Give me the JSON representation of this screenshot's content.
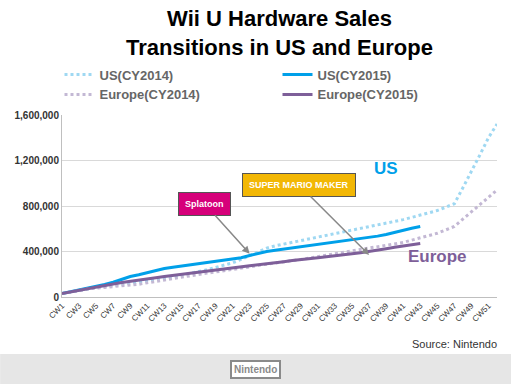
{
  "chart_data": {
    "type": "line",
    "title": "Wii U Hardware Sales\nTransitions in US and Europe",
    "categories": [
      "CW1",
      null,
      "CW3",
      null,
      "CW5",
      null,
      "CW7",
      null,
      "CW9",
      null,
      "CW11",
      null,
      "CW13",
      null,
      "CW15",
      null,
      "CW17",
      null,
      "CW19",
      null,
      "CW21",
      null,
      "CW23",
      null,
      "CW25",
      null,
      "CW27",
      null,
      "CW29",
      null,
      "CW31",
      null,
      "CW33",
      null,
      "CW35",
      null,
      "CW37",
      null,
      "CW39",
      null,
      "CW41",
      null,
      "CW43",
      null,
      "CW45",
      null,
      "CW47",
      null,
      "CW49",
      null,
      "CW51",
      null
    ],
    "series": [
      {
        "name": "US(CY2014)",
        "color": "#9fd8f2",
        "line_style": "dot",
        "values": [
          30000,
          40000,
          55000,
          70000,
          80000,
          90000,
          100000,
          110000,
          120000,
          130000,
          140000,
          150000,
          160000,
          175000,
          190000,
          205000,
          220000,
          240000,
          260000,
          280000,
          300000,
          330000,
          365000,
          400000,
          430000,
          450000,
          465000,
          485000,
          500000,
          515000,
          530000,
          545000,
          560000,
          575000,
          590000,
          605000,
          620000,
          635000,
          650000,
          665000,
          680000,
          700000,
          720000,
          740000,
          760000,
          790000,
          820000,
          960000,
          1100000,
          1250000,
          1400000,
          1520000
        ]
      },
      {
        "name": "US(CY2015)",
        "color": "#00a0e9",
        "line_style": "solid",
        "values": [
          30000,
          45000,
          60000,
          75000,
          90000,
          110000,
          130000,
          155000,
          180000,
          195000,
          215000,
          235000,
          250000,
          262000,
          272000,
          282000,
          290000,
          300000,
          310000,
          320000,
          330000,
          345000,
          365000,
          385000,
          400000,
          410000,
          420000,
          430000,
          440000,
          450000,
          460000,
          470000,
          480000,
          490000,
          500000,
          510000,
          520000,
          535000,
          550000,
          570000,
          590000,
          605000,
          620000,
          null,
          null,
          null,
          null,
          null,
          null,
          null,
          null,
          null
        ]
      },
      {
        "name": "Europe(CY2014)",
        "color": "#c3b8d4",
        "line_style": "dot",
        "values": [
          30000,
          45000,
          60000,
          70000,
          78000,
          84000,
          90000,
          95000,
          100000,
          112000,
          125000,
          138000,
          150000,
          162000,
          175000,
          188000,
          200000,
          210000,
          220000,
          230000,
          240000,
          252000,
          265000,
          278000,
          290000,
          300000,
          310000,
          320000,
          330000,
          342000,
          355000,
          368000,
          380000,
          392000,
          405000,
          418000,
          430000,
          442000,
          455000,
          468000,
          480000,
          500000,
          520000,
          540000,
          560000,
          590000,
          620000,
          685000,
          750000,
          815000,
          880000,
          940000
        ]
      },
      {
        "name": "Europe(CY2015)",
        "color": "#7e5f99",
        "line_style": "solid",
        "values": [
          30000,
          45000,
          60000,
          75000,
          90000,
          102000,
          115000,
          128000,
          140000,
          150000,
          160000,
          170000,
          180000,
          190000,
          200000,
          210000,
          220000,
          230000,
          240000,
          250000,
          260000,
          268000,
          275000,
          283000,
          290000,
          300000,
          310000,
          320000,
          330000,
          338000,
          345000,
          353000,
          360000,
          370000,
          380000,
          390000,
          400000,
          412000,
          425000,
          438000,
          450000,
          460000,
          470000,
          null,
          null,
          null,
          null,
          null,
          null,
          null,
          null,
          null
        ]
      }
    ],
    "ylim": [
      0,
      1600000
    ],
    "yticks": [
      0,
      {
        "value": 400000,
        "label": "400,000"
      },
      {
        "value": 800000,
        "label": "800,000"
      },
      {
        "value": 1200000,
        "label": "1,200,000"
      },
      {
        "value": 1600000,
        "label": "1,600,000"
      }
    ],
    "grid": true,
    "legend": "top",
    "annotations": [
      {
        "text": "US",
        "category": "CW39",
        "y": 1130000,
        "color": "#00a0e9"
      },
      {
        "text": "Europe",
        "category": "CW45",
        "y": 360000,
        "color": "#7e5f99"
      }
    ],
    "callouts": [
      {
        "text": "Splatoon",
        "category": "CW23",
        "y": 380000,
        "color": "#d6007a"
      },
      {
        "text": "SUPER MARIO MAKER",
        "category": "CW37",
        "y": 370000,
        "color": "#f2b705"
      }
    ],
    "source": "Source: Nintendo",
    "logo": "Nintendo"
  }
}
